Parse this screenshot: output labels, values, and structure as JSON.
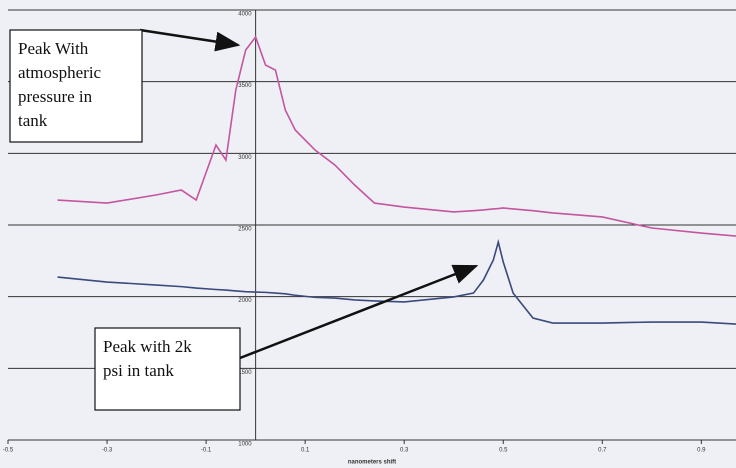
{
  "chart_data": {
    "type": "line",
    "x_label": "nanometers shift",
    "x": [
      -0.4,
      -0.3,
      -0.2,
      -0.15,
      -0.12,
      -0.08,
      -0.06,
      -0.04,
      -0.02,
      0,
      0.02,
      0.04,
      0.06,
      0.08,
      0.12,
      0.16,
      0.2,
      0.24,
      0.3,
      0.4,
      0.44,
      0.46,
      0.48,
      0.49,
      0.5,
      0.52,
      0.56,
      0.6,
      0.7,
      0.8,
      0.9,
      0.97
    ],
    "series": [
      {
        "color": "#c4559f",
        "values": [
          2674,
          2653,
          2710,
          2744,
          2674,
          3058,
          2953,
          3442,
          3721,
          3812,
          3616,
          3581,
          3302,
          3163,
          3023,
          2919,
          2779,
          2653,
          2625,
          2591,
          2600,
          2605,
          2612,
          2615,
          2619,
          2612,
          2600,
          2584,
          2556,
          2479,
          2444,
          2423
        ]
      },
      {
        "color": "#3b4a7c",
        "values": [
          2137,
          2102,
          2081,
          2070,
          2060,
          2050,
          2046,
          2040,
          2035,
          2032,
          2030,
          2025,
          2020,
          2010,
          1995,
          1990,
          1977,
          1970,
          1963,
          1998,
          2025,
          2116,
          2256,
          2381,
          2242,
          2025,
          1851,
          1816,
          1816,
          1823,
          1823,
          1809
        ]
      }
    ],
    "xlim": [
      -0.5,
      0.97
    ],
    "xticks": [
      -0.5,
      -0.3,
      -0.1,
      0.1,
      0.3,
      0.5,
      0.7,
      0.9
    ],
    "ylim": [
      1000,
      4000
    ],
    "yticks": [
      1000,
      1500,
      2000,
      2500,
      3000,
      3500,
      4000
    ],
    "grid": true,
    "annotations": [
      {
        "lines": [
          "Peak With",
          "atmospheric",
          "pressure in",
          "tank"
        ]
      },
      {
        "lines": [
          "Peak with 2k",
          "psi in tank"
        ]
      }
    ]
  }
}
